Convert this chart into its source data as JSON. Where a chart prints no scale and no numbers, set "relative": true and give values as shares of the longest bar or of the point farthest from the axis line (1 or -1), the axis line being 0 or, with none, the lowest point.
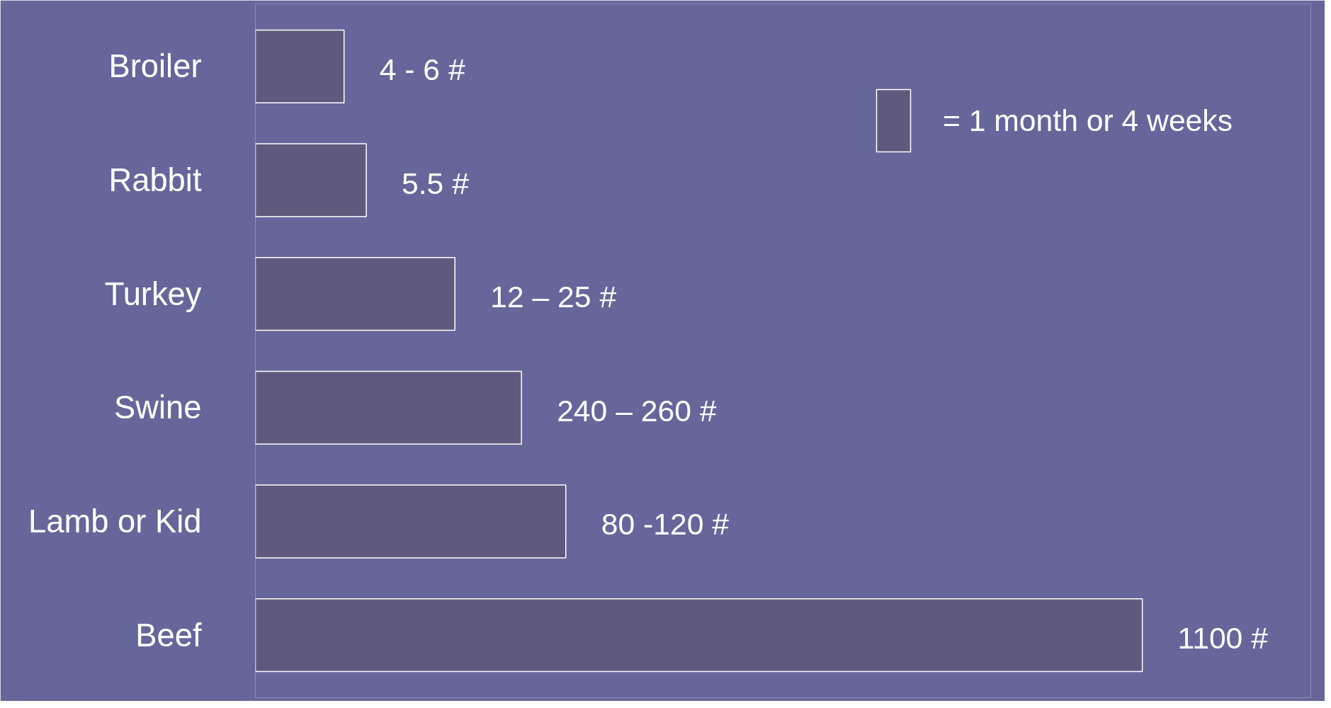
{
  "chart_data": {
    "type": "bar",
    "orientation": "horizontal",
    "categories": [
      "Broiler",
      "Rabbit",
      "Turkey",
      "Swine",
      "Lamb or Kid",
      "Beef"
    ],
    "relative": true,
    "series": [
      {
        "name": "= 1 month or 4 weeks",
        "color": "#5f5a7d",
        "values": [
          0.1,
          0.125,
          0.225,
          0.3,
          0.35,
          1
        ]
      }
    ],
    "annotations": [
      {
        "text": "4 - 6 #",
        "x": 0.1,
        "y": "Broiler"
      },
      {
        "text": "5.5  #",
        "x": 0.125,
        "y": "Rabbit"
      },
      {
        "text": "12 – 25 #",
        "x": 0.225,
        "y": "Turkey"
      },
      {
        "text": "240 – 260 #",
        "x": 0.3,
        "y": "Swine"
      },
      {
        "text": "80 -120 #",
        "x": 0.35,
        "y": "Lamb or Kid"
      },
      {
        "text": "1100 #",
        "x": 1,
        "y": "Beef"
      }
    ],
    "tick_labels": "y",
    "grid": false,
    "legend": "top right"
  }
}
